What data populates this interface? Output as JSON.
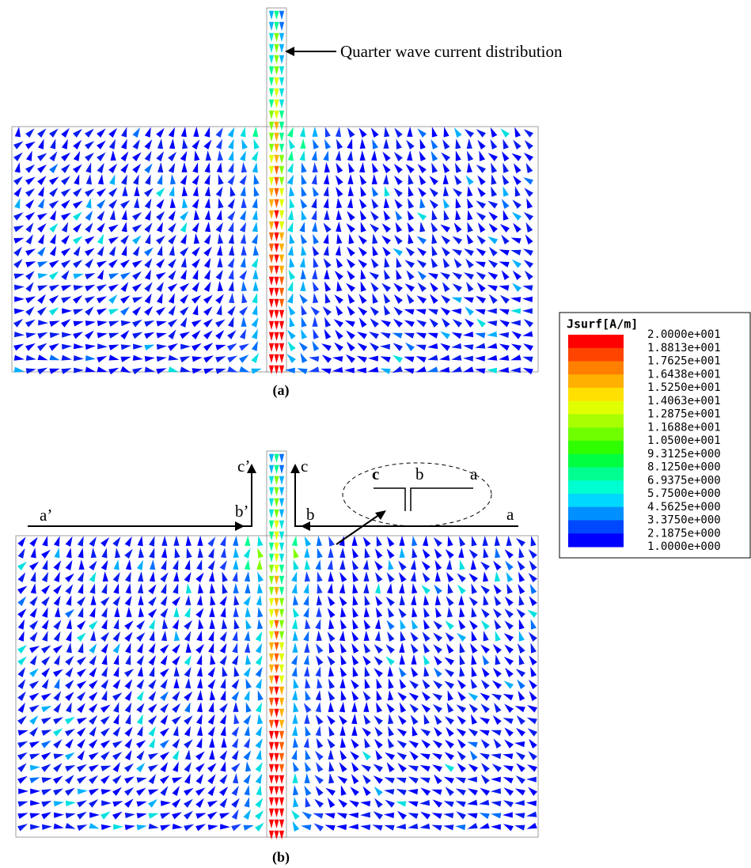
{
  "annotation": "Quarter wave current distribution",
  "panels": [
    {
      "label": "(a)"
    },
    {
      "label": "(b)"
    }
  ],
  "line_labels": {
    "a_prime": "a’",
    "b_prime": "b’",
    "c_prime": "c’",
    "c": "c",
    "b": "b",
    "a": "a"
  },
  "inset": {
    "c": "c",
    "b": "b",
    "a": "a"
  },
  "legend": {
    "title": "Jsurf[A/m]",
    "items": [
      "2.0000e+001",
      "1.8813e+001",
      "1.7625e+001",
      "1.6438e+001",
      "1.5250e+001",
      "1.4063e+001",
      "1.2875e+001",
      "1.1688e+001",
      "1.0500e+001",
      "9.3125e+000",
      "8.1250e+000",
      "6.9375e+000",
      "5.7500e+000",
      "4.5625e+000",
      "3.3750e+000",
      "2.1875e+000",
      "1.0000e+000"
    ],
    "colors": [
      "#ff0000",
      "#ff4400",
      "#ff8000",
      "#ffb000",
      "#ffe000",
      "#e0ff00",
      "#a8ff00",
      "#70ff00",
      "#30ff00",
      "#00ff40",
      "#00ff90",
      "#00ffd0",
      "#00d8ff",
      "#0090ff",
      "#0048ff",
      "#0000ff"
    ]
  }
}
